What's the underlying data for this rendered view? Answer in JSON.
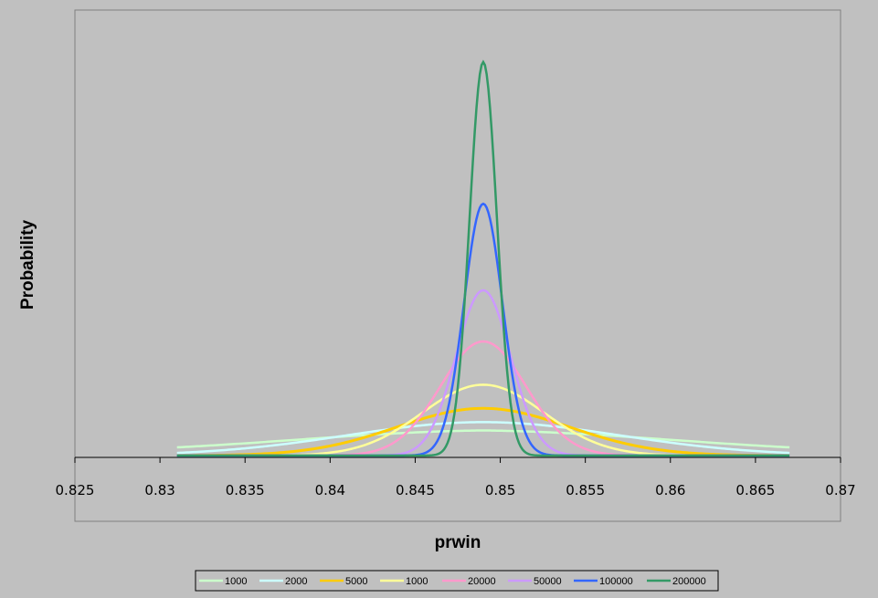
{
  "chart_data": {
    "type": "line",
    "title": "",
    "xlabel": "prwin",
    "ylabel": "Probability",
    "xlim": [
      0.825,
      0.87
    ],
    "ylim": [
      0,
      1.07
    ],
    "x_ticks": [
      0.825,
      0.83,
      0.835,
      0.84,
      0.845,
      0.85,
      0.855,
      0.86,
      0.865,
      0.87
    ],
    "x_tick_labels": [
      "0.825",
      "0.83",
      "0.835",
      "0.84",
      "0.845",
      "0.85",
      "0.855",
      "0.86",
      "0.865",
      "0.87"
    ],
    "grid": false,
    "legend_position": "bottom",
    "x_range_of_curves": [
      0.831,
      0.867
    ],
    "series": [
      {
        "name": "1000",
        "color": "#ccffcc",
        "mean": 0.849,
        "sd": 0.0113,
        "peak": 0.05
      },
      {
        "name": "2000",
        "color": "#ccffff",
        "mean": 0.849,
        "sd": 0.008,
        "peak": 0.085
      },
      {
        "name": "5000",
        "color": "#ffcc00",
        "mean": 0.849,
        "sd": 0.00505,
        "peak": 0.12
      },
      {
        "name": "1000",
        "color": "#ffff99",
        "mean": 0.849,
        "sd": 0.00357,
        "peak": 0.18
      },
      {
        "name": "20000",
        "color": "#ff99cc",
        "mean": 0.849,
        "sd": 0.00252,
        "peak": 0.29
      },
      {
        "name": "50000",
        "color": "#cc99ff",
        "mean": 0.849,
        "sd": 0.0016,
        "peak": 0.42
      },
      {
        "name": "100000",
        "color": "#3366ff",
        "mean": 0.849,
        "sd": 0.00113,
        "peak": 0.64
      },
      {
        "name": "200000",
        "color": "#339966",
        "mean": 0.849,
        "sd": 0.0008,
        "peak": 1.0
      }
    ]
  }
}
